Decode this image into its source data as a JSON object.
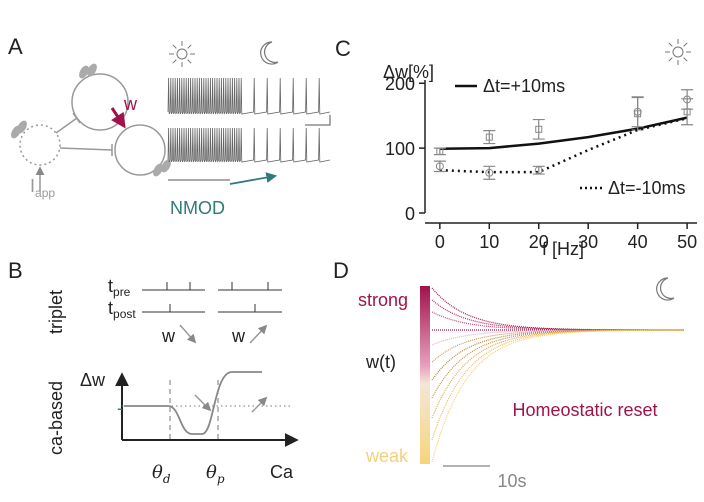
{
  "panels": {
    "A": {
      "label": "A",
      "weight": "w",
      "input": "I",
      "input_sub": "app",
      "model": "NMOD"
    },
    "B": {
      "label": "B",
      "row1": "triplet",
      "t_pre": "t",
      "t_pre_sub": "pre",
      "t_post": "t",
      "t_post_sub": "post",
      "w1": "w",
      "w2": "w",
      "row2": "ca-based",
      "ylabel": "Δw",
      "minus": "-",
      "theta_d": "θ",
      "theta_d_sub": "d",
      "theta_p": "θ",
      "theta_p_sub": "p",
      "xlabel": "Ca"
    },
    "D": {
      "label": "D",
      "strong": "strong",
      "ylabel": "w(t)",
      "weak": "weak",
      "annotation": "Homeostatic reset",
      "scale": "10s"
    }
  },
  "chart_data": {
    "type": "line",
    "label": "C",
    "ylabel": "Δw[%]",
    "xlabel": "f [Hz]",
    "xlim": [
      -3,
      52
    ],
    "ylim": [
      0,
      205
    ],
    "xticks": [
      0,
      10,
      20,
      30,
      40,
      50
    ],
    "yticks": [
      0,
      100,
      200
    ],
    "series": [
      {
        "name": "Δt=+10ms",
        "color": "#111111",
        "style": "solid",
        "x": [
          0,
          10,
          20,
          30,
          40,
          50
        ],
        "values": [
          99,
          100,
          107,
          117,
          130,
          147
        ],
        "marker": "square",
        "marker_color": "#888888",
        "marker_x": [
          0,
          10,
          20,
          40,
          50
        ],
        "marker_values": [
          95,
          117,
          129,
          153,
          156
        ],
        "marker_errors": [
          5,
          10,
          15,
          25,
          20
        ]
      },
      {
        "name": "Δt=-10ms",
        "color": "#111111",
        "style": "dotted",
        "x": [
          0,
          10,
          20,
          30,
          40,
          50
        ],
        "values": [
          66,
          63,
          63,
          97,
          128,
          146
        ],
        "marker": "circle",
        "marker_color": "#888888",
        "marker_x": [
          0,
          10,
          20,
          40,
          50
        ],
        "marker_values": [
          72,
          62,
          66,
          156,
          175
        ],
        "marker_errors": [
          8,
          10,
          6,
          23,
          15
        ]
      }
    ]
  }
}
